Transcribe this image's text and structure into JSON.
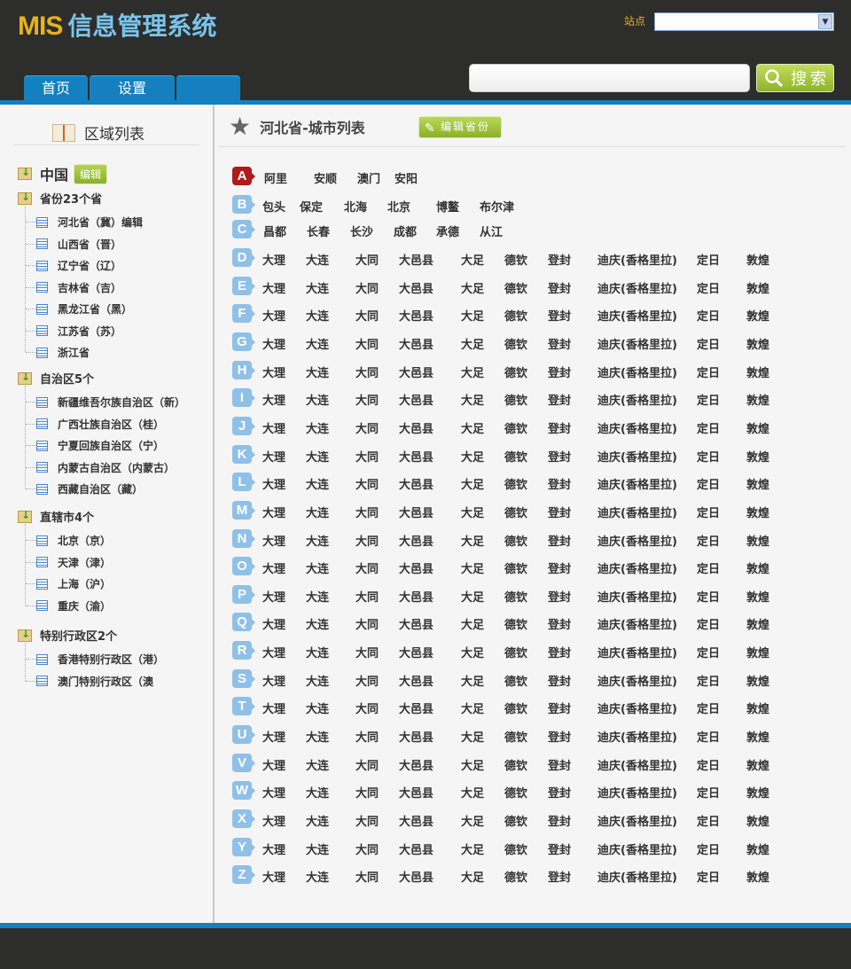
{
  "header": {
    "logo_mis": "MIS",
    "logo_cn": "信息管理系统",
    "site_label": "站点",
    "site_value": "",
    "search_value": "",
    "search_button": "搜索",
    "tabs": [
      "首页",
      "设置",
      ""
    ]
  },
  "sidebar": {
    "title": "区域列表",
    "root": {
      "label": "中国",
      "edit": "编辑"
    },
    "groups": [
      {
        "label": "省份23个省",
        "items": [
          "河北省（冀）编辑",
          "山西省（晋）",
          "辽宁省（辽）",
          "吉林省（吉）",
          "黑龙江省（黑）",
          "江苏省（苏）",
          "浙江省"
        ]
      },
      {
        "label": "自治区5个",
        "items": [
          "新疆维吾尔族自治区（新）",
          "广西壮族自治区（桂）",
          "宁夏回族自治区（宁）",
          "内蒙古自治区（内蒙古）",
          "西藏自治区（藏）"
        ]
      },
      {
        "label": "直辖市4个",
        "items": [
          "北京（京）",
          "天津（津）",
          "上海（沪）",
          "重庆（渝）"
        ]
      },
      {
        "label": "特别行政区2个",
        "items": [
          "香港特别行政区（港）",
          "澳门特别行政区（澳"
        ]
      }
    ]
  },
  "main": {
    "title": "河北省-城市列表",
    "edit_button": "编辑省份",
    "active_letter": "A",
    "rows": [
      {
        "letter": "A",
        "cities": [
          "阿里",
          "安顺",
          "澳门",
          "安阳"
        ]
      },
      {
        "letter": "B",
        "cities": [
          "包头",
          "保定",
          "北海",
          "北京",
          "博鳌",
          "布尔津"
        ]
      },
      {
        "letter": "C",
        "cities": [
          "昌都",
          "长春",
          "长沙",
          "成都",
          "承德",
          "从江"
        ]
      },
      {
        "letter": "D",
        "cities": [
          "大理",
          "大连",
          "大同",
          "大邑县",
          "大足",
          "德钦",
          "登封",
          "迪庆(香格里拉)",
          "定日",
          "敦煌"
        ]
      },
      {
        "letter": "E",
        "cities": [
          "大理",
          "大连",
          "大同",
          "大邑县",
          "大足",
          "德钦",
          "登封",
          "迪庆(香格里拉)",
          "定日",
          "敦煌"
        ]
      },
      {
        "letter": "F",
        "cities": [
          "大理",
          "大连",
          "大同",
          "大邑县",
          "大足",
          "德钦",
          "登封",
          "迪庆(香格里拉)",
          "定日",
          "敦煌"
        ]
      },
      {
        "letter": "G",
        "cities": [
          "大理",
          "大连",
          "大同",
          "大邑县",
          "大足",
          "德钦",
          "登封",
          "迪庆(香格里拉)",
          "定日",
          "敦煌"
        ]
      },
      {
        "letter": "H",
        "cities": [
          "大理",
          "大连",
          "大同",
          "大邑县",
          "大足",
          "德钦",
          "登封",
          "迪庆(香格里拉)",
          "定日",
          "敦煌"
        ]
      },
      {
        "letter": "I",
        "cities": [
          "大理",
          "大连",
          "大同",
          "大邑县",
          "大足",
          "德钦",
          "登封",
          "迪庆(香格里拉)",
          "定日",
          "敦煌"
        ]
      },
      {
        "letter": "J",
        "cities": [
          "大理",
          "大连",
          "大同",
          "大邑县",
          "大足",
          "德钦",
          "登封",
          "迪庆(香格里拉)",
          "定日",
          "敦煌"
        ]
      },
      {
        "letter": "K",
        "cities": [
          "大理",
          "大连",
          "大同",
          "大邑县",
          "大足",
          "德钦",
          "登封",
          "迪庆(香格里拉)",
          "定日",
          "敦煌"
        ]
      },
      {
        "letter": "L",
        "cities": [
          "大理",
          "大连",
          "大同",
          "大邑县",
          "大足",
          "德钦",
          "登封",
          "迪庆(香格里拉)",
          "定日",
          "敦煌"
        ]
      },
      {
        "letter": "M",
        "cities": [
          "大理",
          "大连",
          "大同",
          "大邑县",
          "大足",
          "德钦",
          "登封",
          "迪庆(香格里拉)",
          "定日",
          "敦煌"
        ]
      },
      {
        "letter": "N",
        "cities": [
          "大理",
          "大连",
          "大同",
          "大邑县",
          "大足",
          "德钦",
          "登封",
          "迪庆(香格里拉)",
          "定日",
          "敦煌"
        ]
      },
      {
        "letter": "O",
        "cities": [
          "大理",
          "大连",
          "大同",
          "大邑县",
          "大足",
          "德钦",
          "登封",
          "迪庆(香格里拉)",
          "定日",
          "敦煌"
        ]
      },
      {
        "letter": "P",
        "cities": [
          "大理",
          "大连",
          "大同",
          "大邑县",
          "大足",
          "德钦",
          "登封",
          "迪庆(香格里拉)",
          "定日",
          "敦煌"
        ]
      },
      {
        "letter": "Q",
        "cities": [
          "大理",
          "大连",
          "大同",
          "大邑县",
          "大足",
          "德钦",
          "登封",
          "迪庆(香格里拉)",
          "定日",
          "敦煌"
        ]
      },
      {
        "letter": "R",
        "cities": [
          "大理",
          "大连",
          "大同",
          "大邑县",
          "大足",
          "德钦",
          "登封",
          "迪庆(香格里拉)",
          "定日",
          "敦煌"
        ]
      },
      {
        "letter": "S",
        "cities": [
          "大理",
          "大连",
          "大同",
          "大邑县",
          "大足",
          "德钦",
          "登封",
          "迪庆(香格里拉)",
          "定日",
          "敦煌"
        ]
      },
      {
        "letter": "T",
        "cities": [
          "大理",
          "大连",
          "大同",
          "大邑县",
          "大足",
          "德钦",
          "登封",
          "迪庆(香格里拉)",
          "定日",
          "敦煌"
        ]
      },
      {
        "letter": "U",
        "cities": [
          "大理",
          "大连",
          "大同",
          "大邑县",
          "大足",
          "德钦",
          "登封",
          "迪庆(香格里拉)",
          "定日",
          "敦煌"
        ]
      },
      {
        "letter": "V",
        "cities": [
          "大理",
          "大连",
          "大同",
          "大邑县",
          "大足",
          "德钦",
          "登封",
          "迪庆(香格里拉)",
          "定日",
          "敦煌"
        ]
      },
      {
        "letter": "W",
        "cities": [
          "大理",
          "大连",
          "大同",
          "大邑县",
          "大足",
          "德钦",
          "登封",
          "迪庆(香格里拉)",
          "定日",
          "敦煌"
        ]
      },
      {
        "letter": "X",
        "cities": [
          "大理",
          "大连",
          "大同",
          "大邑县",
          "大足",
          "德钦",
          "登封",
          "迪庆(香格里拉)",
          "定日",
          "敦煌"
        ]
      },
      {
        "letter": "Y",
        "cities": [
          "大理",
          "大连",
          "大同",
          "大邑县",
          "大足",
          "德钦",
          "登封",
          "迪庆(香格里拉)",
          "定日",
          "敦煌"
        ]
      },
      {
        "letter": "Z",
        "cities": [
          "大理",
          "大连",
          "大同",
          "大邑县",
          "大足",
          "德钦",
          "登封",
          "迪庆(香格里拉)",
          "定日",
          "敦煌"
        ]
      }
    ]
  },
  "colors": {
    "header_bg": "#2d2d2b",
    "accent_blue": "#1580c0",
    "logo_yellow": "#e7b21c",
    "logo_blue": "#79c4ea",
    "button_green": "#8fb42c",
    "active_letter": "#b01c1c",
    "letter_blue": "#8ec0e8"
  }
}
